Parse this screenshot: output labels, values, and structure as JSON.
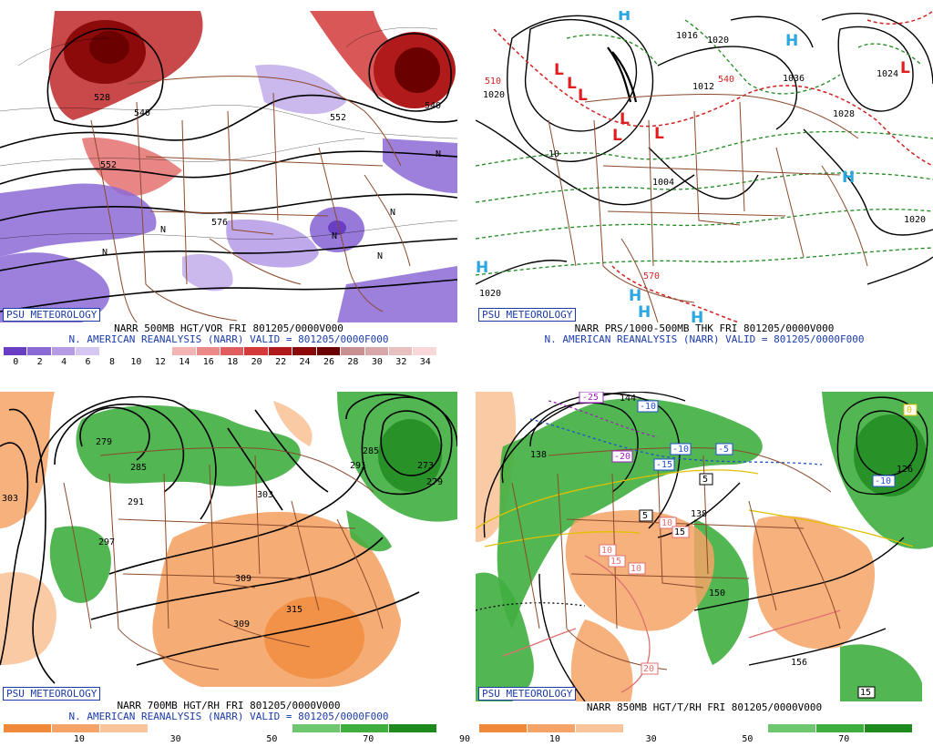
{
  "panels": [
    {
      "id": "vor",
      "badge": "PSU METEOROLOGY",
      "line1": "NARR 500MB HGT/VOR FRI 801205/0000V000",
      "line2": "N. AMERICAN REANALYSIS (NARR) VALID = 801205/0000F000",
      "colorbar": {
        "colors": [
          "#6a3ec4",
          "#8c6ad6",
          "#b59ae6",
          "#d6c6f2",
          "#ffffff",
          "#ffffff",
          "#ffffff",
          "#f3b4b4",
          "#ec8a8a",
          "#e05e5e",
          "#d43a3a",
          "#b01a1a",
          "#8c0a0a",
          "#6a0000",
          "#c89090",
          "#d8a8a8",
          "#e8c0c0",
          "#f8d8d8"
        ],
        "ticks": [
          "0",
          "2",
          "4",
          "6",
          "8",
          "10",
          "12",
          "14",
          "16",
          "18",
          "20",
          "22",
          "24",
          "26",
          "28",
          "30",
          "32",
          "34"
        ]
      },
      "contour_labels": [
        "528",
        "540",
        "552",
        "576",
        "552",
        "540",
        "N",
        "N",
        "N",
        "N",
        "N",
        "N"
      ]
    },
    {
      "id": "thk",
      "badge": "PSU METEOROLOGY",
      "line1": "NARR PRS/1000-500MB THK FRI 801205/0000V000",
      "line2": "N. AMERICAN REANALYSIS (NARR) VALID = 801205/0000F000",
      "contour_labels": [
        "1020",
        "1020",
        "1036",
        "1012",
        "1004",
        "1020",
        "1020",
        "1028",
        "510",
        "540",
        "570",
        "10",
        "1016",
        "1024"
      ],
      "high_low": [
        "H",
        "H",
        "H",
        "H",
        "H",
        "H",
        "H",
        "L",
        "L",
        "L",
        "L",
        "L",
        "L",
        "L"
      ]
    },
    {
      "id": "rh700",
      "badge": "PSU METEOROLOGY",
      "line1": "NARR 700MB HGT/RH FRI 801205/0000V000",
      "line2": "N. AMERICAN REANALYSIS (NARR) VALID = 801205/0000F000",
      "colorbar": {
        "colors": [
          "#f08a3a",
          "#f5a366",
          "#f9c49a",
          "#ffffff",
          "#ffffff",
          "#ffffff",
          "#6ec66e",
          "#3fae3f",
          "#1e8a1e"
        ],
        "ticks": [
          "10",
          "30",
          "50",
          "70",
          "90"
        ]
      },
      "contour_labels": [
        "279",
        "285",
        "291",
        "297",
        "303",
        "303",
        "309",
        "315",
        "309",
        "273",
        "279",
        "285",
        "291"
      ]
    },
    {
      "id": "t850",
      "badge": "PSU METEOROLOGY",
      "line1": "NARR 850MB HGT/T/RH FRI 801205/0000V000",
      "line2": "",
      "colorbar": {
        "colors": [
          "#f08a3a",
          "#f5a366",
          "#f9c49a",
          "#ffffff",
          "#ffffff",
          "#ffffff",
          "#6ec66e",
          "#3fae3f",
          "#1e8a1e"
        ],
        "ticks": [
          "10",
          "30",
          "50",
          "70",
          "90"
        ]
      },
      "contour_labels": [
        "144",
        "138",
        "138",
        "150",
        "156",
        "126",
        "132"
      ],
      "temp_labels": [
        "-25",
        "-20",
        "-15",
        "-10",
        "-5",
        "-10",
        "-10",
        "5",
        "5",
        "10",
        "10",
        "15",
        "10",
        "15",
        "20",
        "0",
        "15"
      ]
    }
  ]
}
